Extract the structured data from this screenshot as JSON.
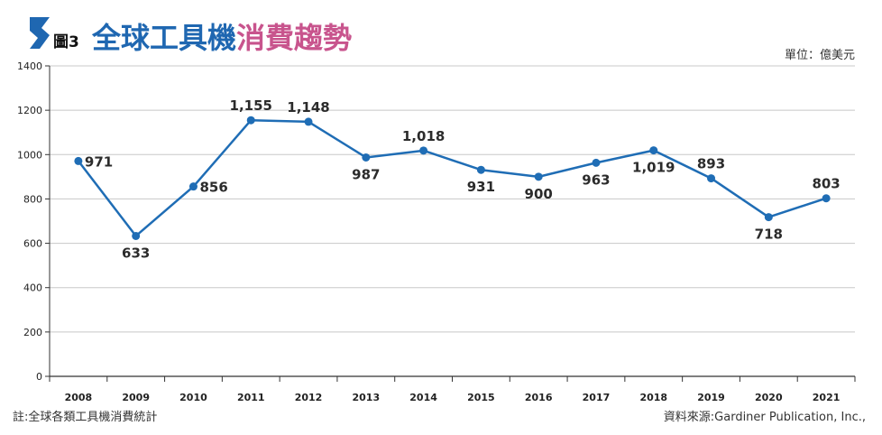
{
  "header": {
    "figure_label": "圖3",
    "title_part1": "全球工具機",
    "title_part2": "消費趨勢",
    "title_color1": "#1f67b1",
    "title_color2": "#c8548d",
    "unit": "單位：億美元",
    "logo_icon": "s-logo-icon"
  },
  "footer": {
    "note": "註:全球各類工具機消費統計",
    "source": "資料來源:Gardiner Publication, Inc.,"
  },
  "chart_data": {
    "type": "line",
    "categories": [
      "2008",
      "2009",
      "2010",
      "2011",
      "2012",
      "2013",
      "2014",
      "2015",
      "2016",
      "2017",
      "2018",
      "2019",
      "2020",
      "2021"
    ],
    "values": [
      971,
      633,
      856,
      1155,
      1148,
      987,
      1018,
      931,
      900,
      963,
      1019,
      893,
      718,
      803
    ],
    "value_labels": [
      "971",
      "633",
      "856",
      "1,155",
      "1,148",
      "987",
      "1,018",
      "931",
      "900",
      "963",
      "1,019",
      "893",
      "718",
      "803"
    ],
    "label_position": [
      "right",
      "below",
      "right",
      "above",
      "above",
      "below",
      "above",
      "below",
      "below",
      "below",
      "below",
      "above",
      "below",
      "above"
    ],
    "ylim": [
      0,
      1400
    ],
    "yticks": [
      0,
      200,
      400,
      600,
      800,
      1000,
      1200,
      1400
    ],
    "ytick_labels": [
      "0",
      "200",
      "400",
      "600",
      "800",
      "1000",
      "1200",
      "1400"
    ],
    "grid": true,
    "line_color": "#1f6db5"
  }
}
